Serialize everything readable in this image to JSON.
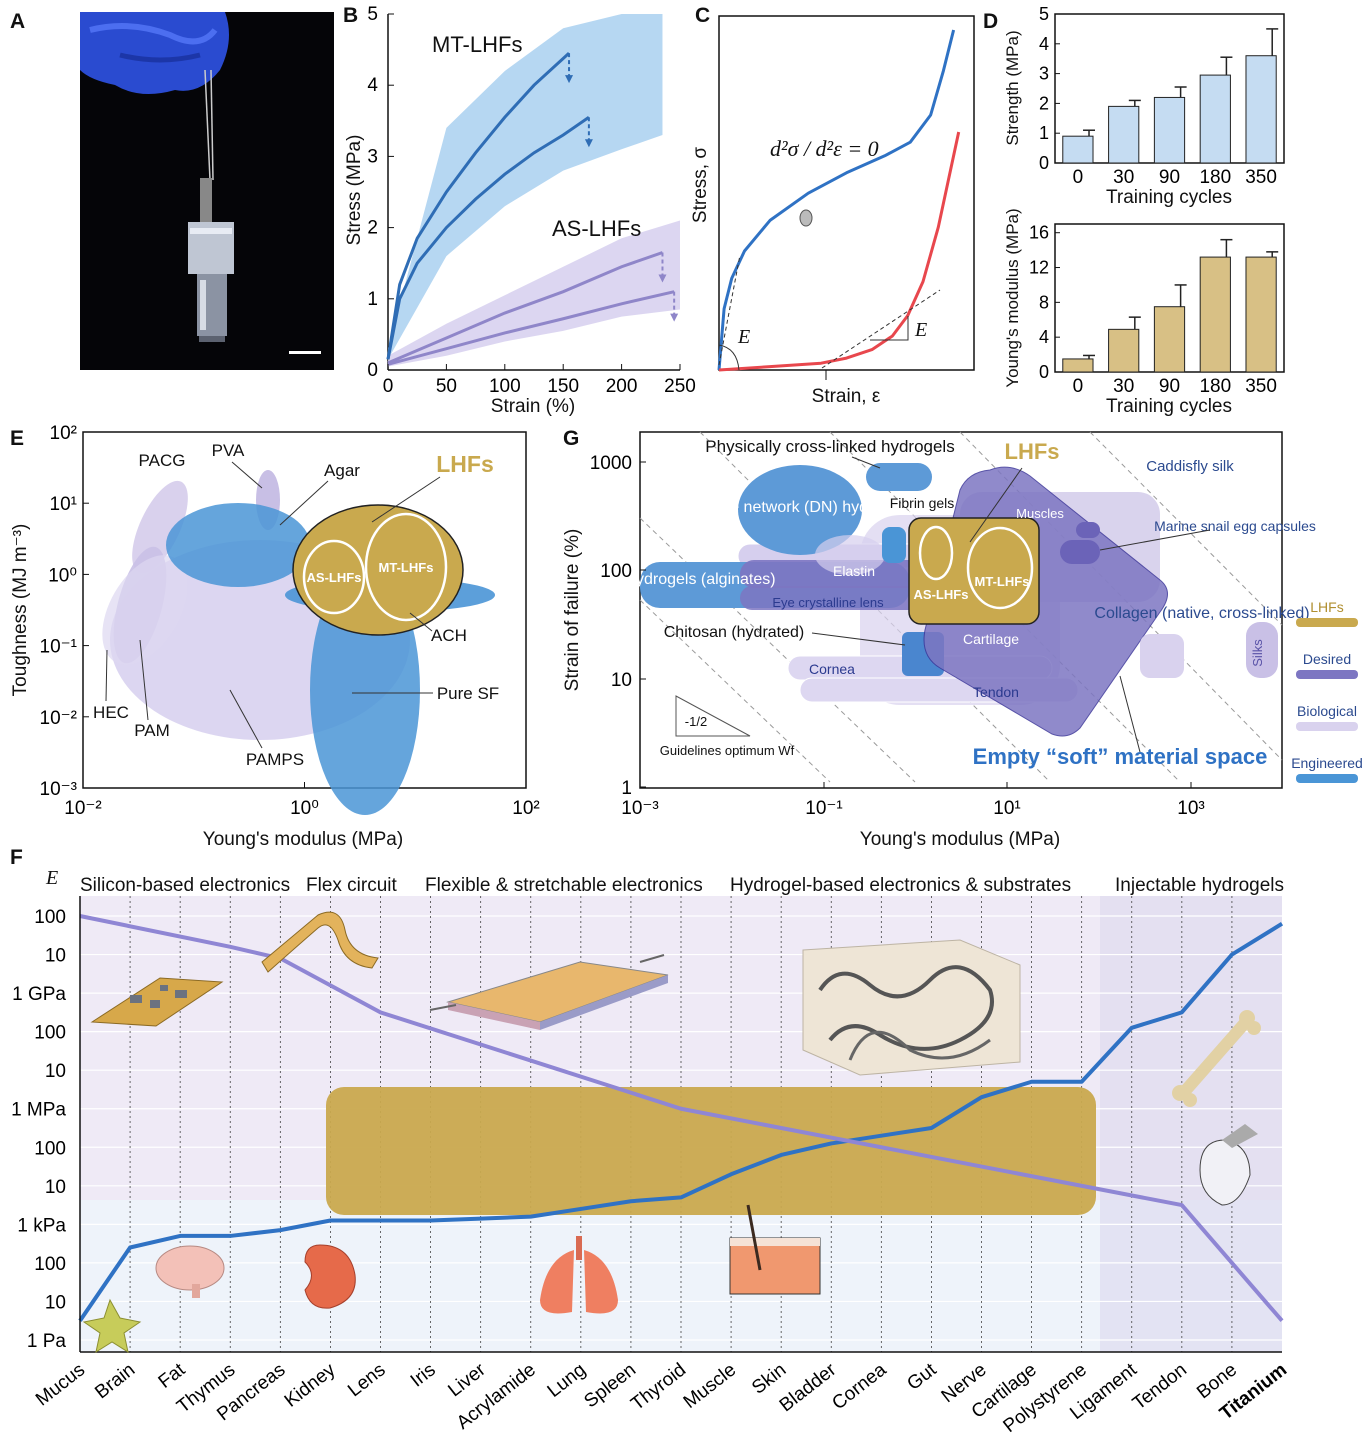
{
  "panels": {
    "A": "A",
    "B": "B",
    "C": "C",
    "D": "D",
    "E": "E",
    "F": "F",
    "G": "G"
  },
  "chart_data": [
    {
      "panel": "B",
      "type": "line",
      "xlabel": "Strain (%)",
      "ylabel": "Stress (MPa)",
      "xlim": [
        0,
        250
      ],
      "ylim": [
        0,
        5
      ],
      "xticks": [
        0,
        50,
        100,
        150,
        200,
        250
      ],
      "yticks": [
        0,
        1,
        2,
        3,
        4,
        5
      ],
      "annotations": [
        "MT-LHFs",
        "AS-LHFs"
      ],
      "series": [
        {
          "group": "MT-LHFs",
          "color": "#2f6db5",
          "x": [
            0,
            10,
            25,
            50,
            75,
            100,
            125,
            155
          ],
          "y": [
            0.15,
            1.2,
            1.85,
            2.5,
            3.05,
            3.55,
            4.0,
            4.45
          ]
        },
        {
          "group": "MT-LHFs",
          "color": "#2f6db5",
          "x": [
            0,
            10,
            25,
            50,
            75,
            100,
            125,
            150,
            172
          ],
          "y": [
            0.15,
            1.0,
            1.5,
            2.0,
            2.4,
            2.75,
            3.05,
            3.3,
            3.55
          ]
        },
        {
          "group": "AS-LHFs",
          "color": "#8f86c9",
          "x": [
            0,
            50,
            100,
            150,
            200,
            235
          ],
          "y": [
            0.1,
            0.45,
            0.8,
            1.1,
            1.45,
            1.65
          ]
        },
        {
          "group": "AS-LHFs",
          "color": "#8f86c9",
          "x": [
            0,
            50,
            100,
            150,
            200,
            245
          ],
          "y": [
            0.08,
            0.3,
            0.52,
            0.72,
            0.93,
            1.1
          ]
        }
      ],
      "bands": [
        {
          "group": "MT-LHFs",
          "color": "#a9d0f0",
          "x": [
            0,
            50,
            100,
            150,
            200,
            235
          ],
          "low": [
            0.15,
            1.6,
            2.3,
            2.8,
            3.1,
            3.3
          ],
          "high": [
            0.3,
            3.4,
            4.2,
            4.8,
            5.4,
            5.8
          ]
        },
        {
          "group": "AS-LHFs",
          "color": "#d6cfee",
          "x": [
            0,
            50,
            100,
            150,
            200,
            250
          ],
          "low": [
            0.05,
            0.2,
            0.4,
            0.55,
            0.75,
            0.85
          ],
          "high": [
            0.2,
            0.65,
            1.05,
            1.45,
            1.85,
            2.1
          ]
        }
      ]
    },
    {
      "panel": "C",
      "type": "line",
      "xlabel": "Strain, ε",
      "ylabel": "Stress, σ",
      "equation": "d²σ / d²ε = 0",
      "slope_label": "E",
      "series": [
        {
          "color": "#2f72c4",
          "x": [
            0,
            0.02,
            0.05,
            0.1,
            0.2,
            0.35,
            0.5,
            0.65,
            0.75,
            0.83,
            0.88,
            0.92
          ],
          "y": [
            0,
            0.18,
            0.27,
            0.35,
            0.44,
            0.52,
            0.58,
            0.63,
            0.67,
            0.75,
            0.88,
            1.0
          ]
        },
        {
          "color": "#e8474d",
          "x": [
            0,
            0.2,
            0.4,
            0.5,
            0.6,
            0.68,
            0.74,
            0.8,
            0.86,
            0.9,
            0.94
          ],
          "y": [
            0,
            0.01,
            0.02,
            0.035,
            0.06,
            0.1,
            0.16,
            0.26,
            0.42,
            0.56,
            0.7
          ]
        }
      ]
    },
    {
      "panel": "D",
      "type": "bar",
      "xlabel": "Training cycles",
      "ylabel": "Strength (MPa)",
      "categories": [
        "0",
        "30",
        "90",
        "180",
        "350"
      ],
      "values": [
        0.9,
        1.9,
        2.2,
        2.95,
        3.6
      ],
      "errors": [
        0.2,
        0.2,
        0.35,
        0.6,
        0.9
      ],
      "ylim": [
        0,
        5
      ],
      "yticks": [
        0,
        1,
        2,
        3,
        4,
        5
      ],
      "color": "#c5dcf2"
    },
    {
      "panel": "D",
      "type": "bar",
      "xlabel": "Training cycles",
      "ylabel": "Young's modulus (MPa)",
      "categories": [
        "0",
        "30",
        "90",
        "180",
        "350"
      ],
      "values": [
        1.5,
        4.9,
        7.5,
        13.2,
        13.2
      ],
      "errors": [
        0.4,
        1.4,
        2.5,
        2.0,
        0.6
      ],
      "ylim": [
        0,
        17
      ],
      "yticks": [
        0,
        4,
        8,
        12,
        16
      ],
      "color": "#d8c085"
    },
    {
      "panel": "E",
      "type": "scatter",
      "xlabel": "Young's modulus (MPa)",
      "ylabel": "Toughness (MJ m⁻³)",
      "xscale": "log",
      "yscale": "log",
      "xticks": [
        "10⁻²",
        "10⁰",
        "10²"
      ],
      "yticks": [
        "10²",
        "10¹",
        "10⁰",
        "10⁻¹",
        "10⁻²",
        "10⁻³"
      ],
      "regions": [
        "PACG",
        "PVA",
        "Agar",
        "LHFs",
        "AS-LHFs",
        "MT-LHFs",
        "ACH",
        "Pure SF",
        "PAMPS",
        "PAM",
        "HEC"
      ]
    },
    {
      "panel": "G",
      "type": "scatter",
      "xlabel": "Young's modulus (MPa)",
      "ylabel": "Strain of failure (%)",
      "xscale": "log",
      "yscale": "log",
      "xticks": [
        "10⁻³",
        "10⁻¹",
        "10¹",
        "10³"
      ],
      "yticks": [
        "1000",
        "100",
        "10",
        "1"
      ],
      "regions": [
        "Physically cross-linked hydrogels",
        "LHFs",
        "Caddisfly silk",
        "Double network (DN) hydrogels",
        "Fibrin gels",
        "Muscles",
        "Marine snail egg capsules",
        "Hydrogels (alginates)",
        "Elastin",
        "AS-LHFs",
        "MT-LHFs",
        "Eye crystalline lens",
        "Collagen (native, cross-linked)",
        "Silks",
        "Chitosan (hydrated)",
        "Cartilage",
        "Cornea",
        "Tendon"
      ],
      "guideline_slope": "-1/2",
      "guideline_label": "Guidelines optimum Wf",
      "empty_label": "Empty “soft” material space",
      "legend": [
        {
          "name": "LHFs",
          "color": "#c9a94e"
        },
        {
          "name": "Desired",
          "color": "#7d76c2"
        },
        {
          "name": "Biological",
          "color": "#d9d2ee"
        },
        {
          "name": "Engineered",
          "color": "#4a95d6"
        }
      ]
    },
    {
      "panel": "F",
      "type": "line",
      "ylabel": "E",
      "yticks": [
        "100",
        "10",
        "1 GPa",
        "100",
        "10",
        "1 MPa",
        "100",
        "10",
        "1 kPa",
        "100",
        "10",
        "1 Pa"
      ],
      "categories": [
        "Mucus",
        "Brain",
        "Fat",
        "Thymus",
        "Pancreas",
        "Kidney",
        "Lens",
        "Iris",
        "Liver",
        "Acrylamide",
        "Lung",
        "Spleen",
        "Thyroid",
        "Muscle",
        "Skin",
        "Bladder",
        "Cornea",
        "Gut",
        "Nerve",
        "Cartilage",
        "Polystyrene",
        "Ligament",
        "Tendon",
        "Bone",
        "Titanium"
      ],
      "sections": [
        "Silicon-based electronics",
        "Flex circuit",
        "Flexible & stretchable electronics",
        "Hydrogel-based electronics & substrates",
        "Injectable hydrogels"
      ],
      "series": [
        {
          "name_hidden": "tissue modulus",
          "color": "#2f72c4",
          "log10_pa": [
            0.5,
            2.4,
            2.7,
            2.7,
            2.85,
            3.1,
            3.1,
            3.1,
            3.15,
            3.2,
            3.4,
            3.6,
            3.7,
            4.3,
            4.8,
            5.1,
            5.3,
            5.5,
            6.3,
            6.7,
            6.7,
            8.1,
            8.5,
            10.0,
            10.8
          ]
        },
        {
          "name_hidden": "material modulus",
          "color": "#8f86d4",
          "log10_pa": [
            11.0,
            null,
            null,
            10.2,
            9.9,
            null,
            8.5,
            null,
            null,
            null,
            null,
            null,
            6.0,
            null,
            null,
            null,
            null,
            null,
            null,
            null,
            null,
            null,
            3.5,
            null,
            0.5
          ]
        }
      ],
      "lhf_band_log10_pa": [
        3.0,
        6.9
      ]
    }
  ]
}
